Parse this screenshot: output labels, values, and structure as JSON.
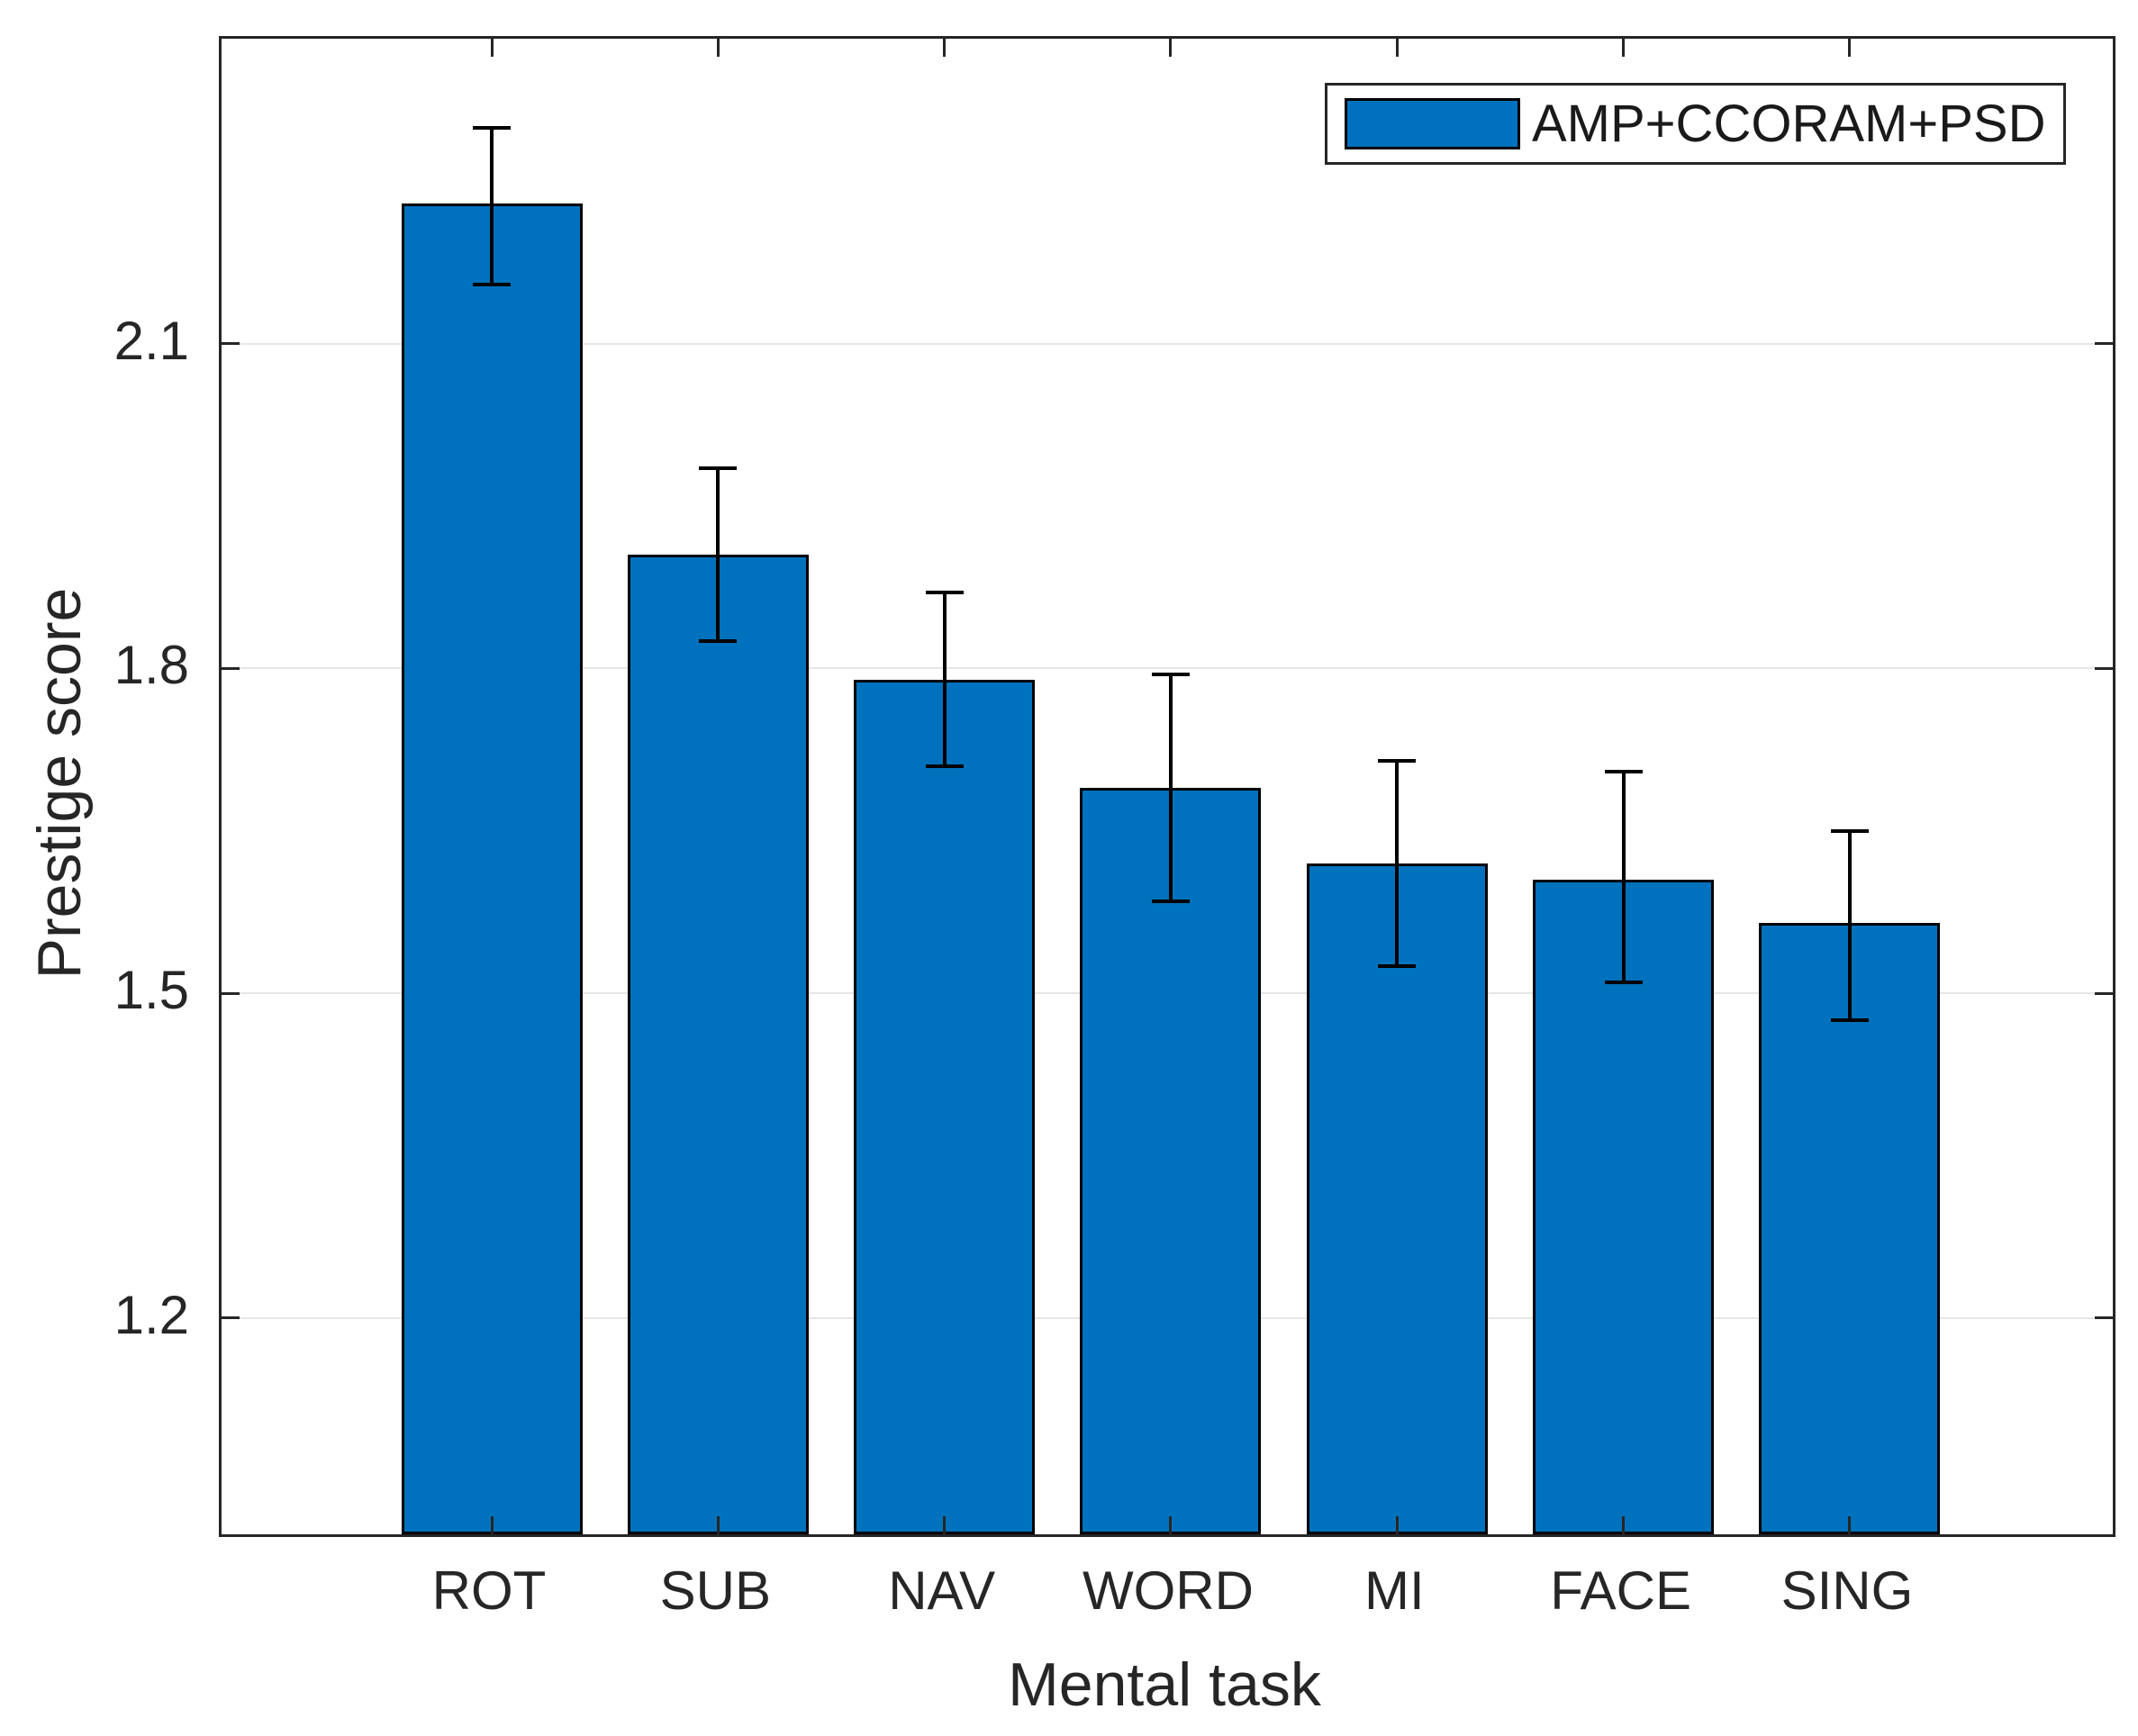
{
  "chart_data": {
    "type": "bar",
    "title": "",
    "categories": [
      "ROT",
      "SUB",
      "NAV",
      "WORD",
      "MI",
      "FACE",
      "SING"
    ],
    "series": [
      {
        "name": "AMP+CCORAM+PSD",
        "values": [
          2.23,
          1.905,
          1.79,
          1.69,
          1.62,
          1.605,
          1.565
        ],
        "error_low": [
          2.155,
          1.825,
          1.71,
          1.585,
          1.525,
          1.51,
          1.475
        ],
        "error_high": [
          2.3,
          1.985,
          1.87,
          1.795,
          1.715,
          1.705,
          1.65
        ]
      }
    ],
    "xlabel": "Mental task",
    "ylabel": "Prestige score",
    "yticks": [
      2.1,
      1.8,
      1.5,
      1.2
    ],
    "ytick_labels": [
      "2.1",
      "1.8",
      "1.5",
      "1.2"
    ],
    "ylim": [
      1.0,
      2.382
    ],
    "grid": "horizontal-only",
    "grid_color": "#e6e6e6",
    "legend_position": "top-right",
    "bar_color": "#0072BD",
    "bar_edge_color": "#000000",
    "error_bar_color": "#000000",
    "axis_color": "#262626"
  },
  "axes": {
    "xlabel": "Mental task",
    "ylabel": "Prestige score"
  },
  "legend": {
    "items": [
      {
        "label": "AMP+CCORAM+PSD",
        "swatch_color": "#0072BD"
      }
    ]
  }
}
